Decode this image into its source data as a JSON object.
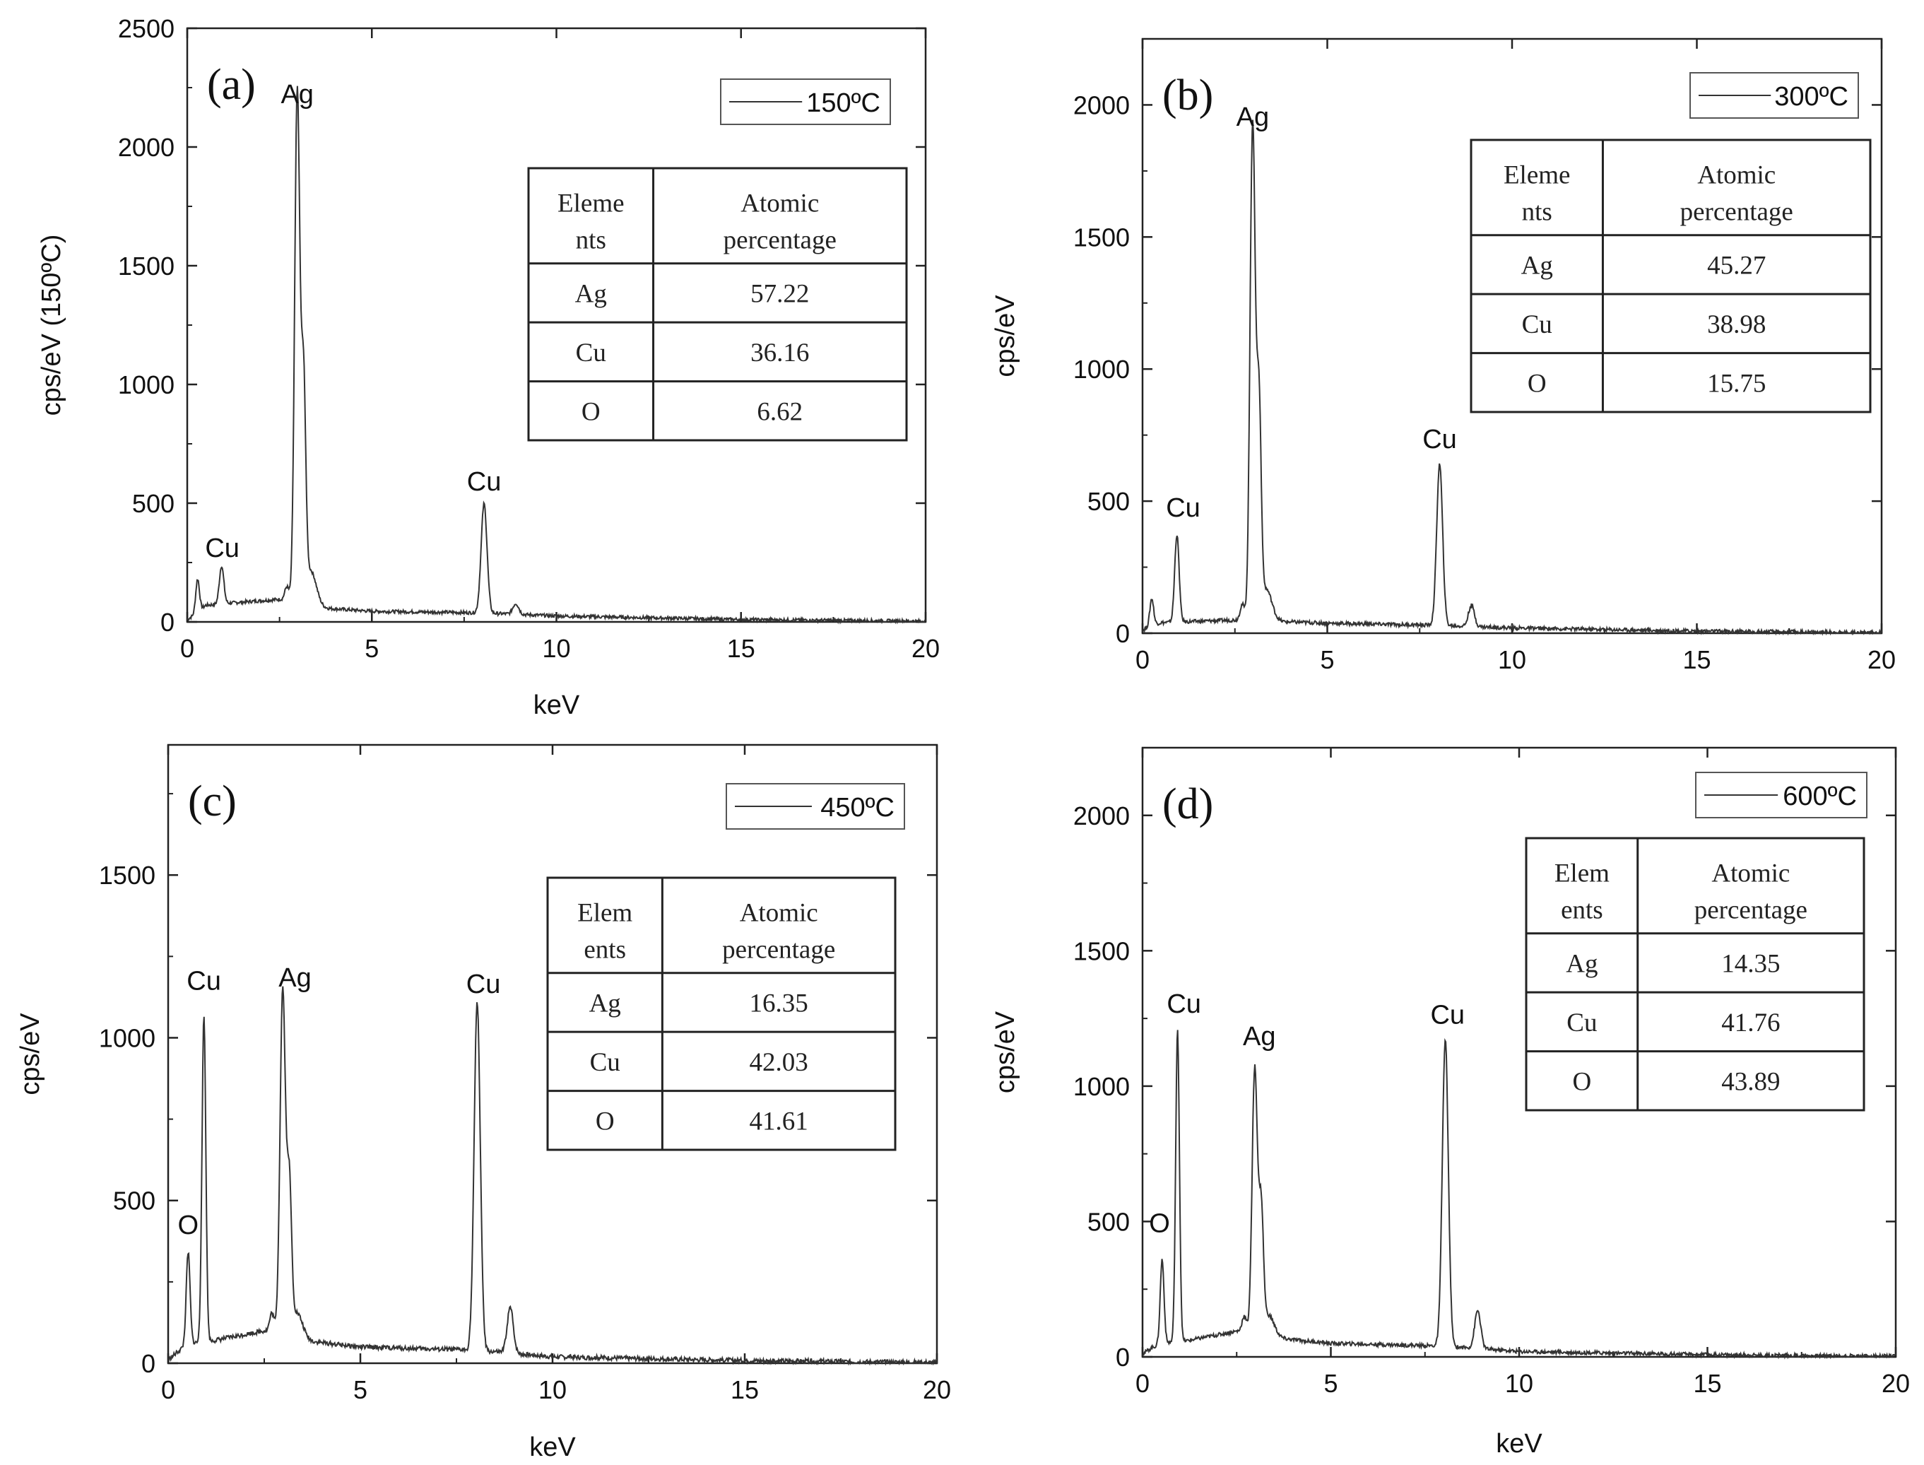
{
  "chart_data": [
    {
      "type": "line",
      "panel_label": "(a)",
      "xlabel": "keV",
      "ylabel": "cps/eV (150ºC)",
      "xlim": [
        0,
        20
      ],
      "ylim": [
        0,
        2500
      ],
      "xticks": [
        0,
        5,
        10,
        15,
        20
      ],
      "yticks": [
        0,
        500,
        1000,
        1500,
        2000,
        2500
      ],
      "legend": {
        "label": "150ºC",
        "position": "top-right"
      },
      "series": [
        {
          "baseline": [
            [
              0,
              10
            ],
            [
              0.2,
              30
            ],
            [
              0.5,
              70
            ],
            [
              1.2,
              80
            ],
            [
              2.5,
              95
            ],
            [
              3.5,
              60
            ],
            [
              5,
              45
            ],
            [
              8,
              38
            ],
            [
              10,
              25
            ],
            [
              15,
              10
            ],
            [
              20,
              3
            ]
          ],
          "peaks": [
            [
              0.28,
              140,
              0.05
            ],
            [
              0.93,
              160,
              0.06
            ],
            [
              2.7,
              60,
              0.06
            ],
            [
              2.98,
              2150,
              0.07
            ],
            [
              3.15,
              900,
              0.06
            ],
            [
              3.35,
              150,
              0.15
            ],
            [
              8.04,
              460,
              0.08
            ],
            [
              8.9,
              45,
              0.08
            ]
          ]
        }
      ],
      "annotations": [
        {
          "text": "Ag",
          "x": 2.98,
          "y": 2160
        },
        {
          "text": "Cu",
          "x": 0.95,
          "y": 250
        },
        {
          "text": "Cu",
          "x": 8.04,
          "y": 530
        }
      ],
      "table": {
        "headers": [
          "Eleme nts",
          "Atomic percentage"
        ],
        "rows": [
          [
            "Ag",
            "57.22"
          ],
          [
            "Cu",
            "36.16"
          ],
          [
            "O",
            "6.62"
          ]
        ]
      }
    },
    {
      "type": "line",
      "panel_label": "(b)",
      "xlabel": "",
      "ylabel": "cps/eV",
      "xlim": [
        0,
        20
      ],
      "ylim": [
        0,
        2250
      ],
      "xticks": [
        0,
        5,
        10,
        15,
        20
      ],
      "yticks": [
        0,
        500,
        1000,
        1500,
        2000
      ],
      "legend": {
        "label": "300ºC",
        "position": "top-right"
      },
      "series": [
        {
          "baseline": [
            [
              0,
              10
            ],
            [
              0.2,
              30
            ],
            [
              0.5,
              40
            ],
            [
              1.5,
              45
            ],
            [
              2.5,
              50
            ],
            [
              3.5,
              45
            ],
            [
              5,
              38
            ],
            [
              8,
              30
            ],
            [
              10,
              20
            ],
            [
              15,
              8
            ],
            [
              20,
              2
            ]
          ],
          "peaks": [
            [
              0.25,
              100,
              0.05
            ],
            [
              0.93,
              330,
              0.06
            ],
            [
              2.7,
              60,
              0.06
            ],
            [
              2.98,
              1880,
              0.07
            ],
            [
              3.15,
              800,
              0.06
            ],
            [
              3.35,
              120,
              0.15
            ],
            [
              8.04,
              610,
              0.08
            ],
            [
              8.9,
              80,
              0.08
            ]
          ]
        }
      ],
      "annotations": [
        {
          "text": "Ag",
          "x": 2.98,
          "y": 1900
        },
        {
          "text": "Cu",
          "x": 1.1,
          "y": 420
        },
        {
          "text": "Cu",
          "x": 8.04,
          "y": 680
        }
      ],
      "table": {
        "headers": [
          "Eleme nts",
          "Atomic percentage"
        ],
        "rows": [
          [
            "Ag",
            "45.27"
          ],
          [
            "Cu",
            "38.98"
          ],
          [
            "O",
            "15.75"
          ]
        ]
      }
    },
    {
      "type": "line",
      "panel_label": "(c)",
      "xlabel": "keV",
      "ylabel": "cps/eV",
      "xlim": [
        0,
        20
      ],
      "ylim": [
        0,
        1900
      ],
      "xticks": [
        0,
        5,
        10,
        15,
        20
      ],
      "yticks": [
        0,
        500,
        1000,
        1500
      ],
      "legend": {
        "label": "450ºC",
        "position": "top-right"
      },
      "series": [
        {
          "baseline": [
            [
              0,
              10
            ],
            [
              0.2,
              30
            ],
            [
              0.5,
              60
            ],
            [
              1.2,
              70
            ],
            [
              2.5,
              100
            ],
            [
              3.5,
              70
            ],
            [
              5,
              50
            ],
            [
              8,
              40
            ],
            [
              10,
              20
            ],
            [
              15,
              8
            ],
            [
              20,
              2
            ]
          ],
          "peaks": [
            [
              0.52,
              280,
              0.05
            ],
            [
              0.93,
              1000,
              0.05
            ],
            [
              2.7,
              60,
              0.06
            ],
            [
              2.98,
              1060,
              0.07
            ],
            [
              3.15,
              450,
              0.06
            ],
            [
              3.35,
              80,
              0.15
            ],
            [
              8.04,
              1070,
              0.08
            ],
            [
              8.9,
              140,
              0.08
            ]
          ]
        }
      ],
      "annotations": [
        {
          "text": "O",
          "x": 0.52,
          "y": 380
        },
        {
          "text": "Cu",
          "x": 0.93,
          "y": 1130
        },
        {
          "text": "Ag",
          "x": 3.3,
          "y": 1140
        },
        {
          "text": "Cu",
          "x": 8.2,
          "y": 1120
        }
      ],
      "table": {
        "headers": [
          "Elem ents",
          "Atomic percentage"
        ],
        "rows": [
          [
            "Ag",
            "16.35"
          ],
          [
            "Cu",
            "42.03"
          ],
          [
            "O",
            "41.61"
          ]
        ]
      }
    },
    {
      "type": "line",
      "panel_label": "(d)",
      "xlabel": "keV",
      "ylabel": "cps/eV",
      "xlim": [
        0,
        20
      ],
      "ylim": [
        0,
        2250
      ],
      "xticks": [
        0,
        5,
        10,
        15,
        20
      ],
      "yticks": [
        0,
        500,
        1000,
        1500,
        2000
      ],
      "legend": {
        "label": "600ºC",
        "position": "top-right"
      },
      "series": [
        {
          "baseline": [
            [
              0,
              10
            ],
            [
              0.2,
              30
            ],
            [
              0.5,
              50
            ],
            [
              1.2,
              60
            ],
            [
              2.5,
              95
            ],
            [
              3.5,
              70
            ],
            [
              5,
              50
            ],
            [
              8,
              40
            ],
            [
              10,
              20
            ],
            [
              15,
              8
            ],
            [
              20,
              2
            ]
          ],
          "peaks": [
            [
              0.52,
              310,
              0.05
            ],
            [
              0.93,
              1150,
              0.05
            ],
            [
              2.7,
              60,
              0.06
            ],
            [
              2.98,
              980,
              0.07
            ],
            [
              3.15,
              450,
              0.06
            ],
            [
              3.35,
              80,
              0.15
            ],
            [
              8.04,
              1130,
              0.08
            ],
            [
              8.9,
              140,
              0.08
            ]
          ]
        }
      ],
      "annotations": [
        {
          "text": "O",
          "x": 0.45,
          "y": 440
        },
        {
          "text": "Cu",
          "x": 1.1,
          "y": 1250
        },
        {
          "text": "Ag",
          "x": 3.1,
          "y": 1130
        },
        {
          "text": "Cu",
          "x": 8.1,
          "y": 1210
        }
      ],
      "table": {
        "headers": [
          "Elem ents",
          "Atomic percentage"
        ],
        "rows": [
          [
            "Ag",
            "14.35"
          ],
          [
            "Cu",
            "41.76"
          ],
          [
            "O",
            "43.89"
          ]
        ]
      }
    }
  ]
}
